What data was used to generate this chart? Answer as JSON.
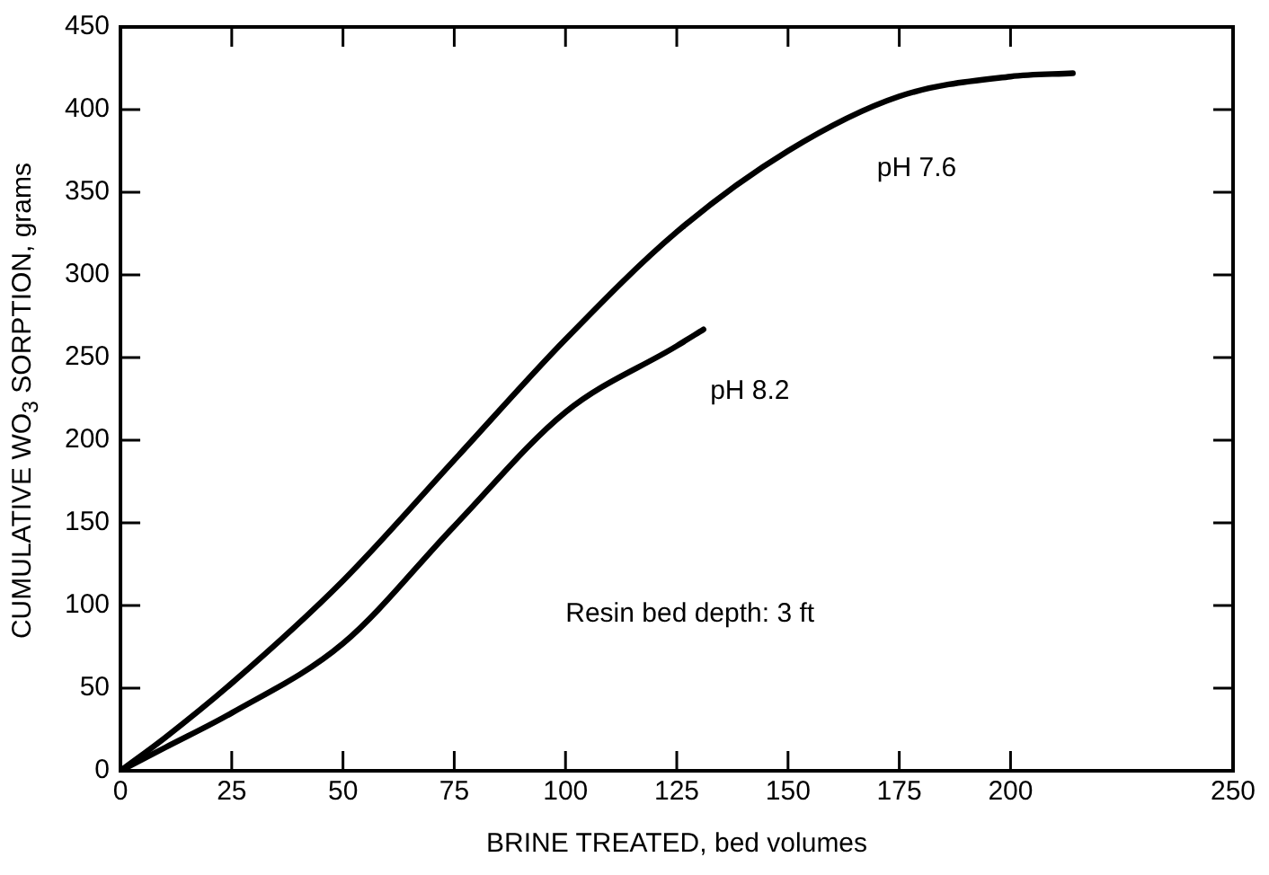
{
  "chart_data": {
    "type": "line",
    "xlabel": "BRINE TREATED, bed volumes",
    "ylabel": "CUMULATIVE WO$_{3}$ SORPTION, grams",
    "xlim": [
      0,
      250
    ],
    "xticks": [
      0,
      25,
      50,
      75,
      100,
      125,
      150,
      175,
      200,
      250
    ],
    "ylim": [
      0,
      450
    ],
    "yticks": [
      0,
      50,
      100,
      150,
      200,
      250,
      300,
      350,
      400,
      450
    ],
    "grid": false,
    "legend": false,
    "marker": "none",
    "line_style": "solid",
    "series": [
      {
        "color": "#000000",
        "x": [
          0,
          10,
          25,
          50,
          75,
          100,
          125,
          150,
          175,
          200,
          214
        ],
        "values": [
          0,
          20,
          53,
          115,
          188,
          261,
          326,
          375,
          408,
          420,
          422
        ]
      },
      {
        "color": "#000000",
        "x": [
          0,
          10,
          25,
          50,
          75,
          100,
          125,
          131
        ],
        "values": [
          0,
          14,
          35,
          77,
          148,
          217,
          257,
          267
        ]
      }
    ],
    "annotations": [
      "pH 7.6",
      "pH 8.2",
      "Resin bed depth: 3 ft"
    ]
  }
}
